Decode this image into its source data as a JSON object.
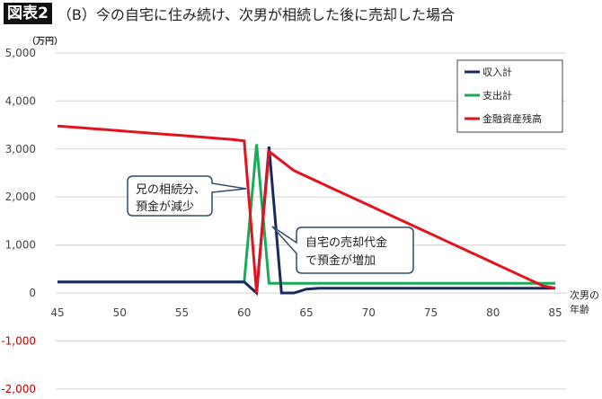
{
  "header": {
    "badge": "図表2",
    "title": "（B）今の自宅に住み続け、次男が相続した後に売却した場合"
  },
  "axis": {
    "unit": "（万円）",
    "xlabel_line1": "次男の",
    "xlabel_line2": "年齢",
    "y_ticks": [
      "5,000",
      "4,000",
      "3,000",
      "2,000",
      "1,000",
      "0",
      "-1,000",
      "-2,000"
    ],
    "x_ticks": [
      "45",
      "50",
      "55",
      "60",
      "65",
      "70",
      "75",
      "80",
      "85"
    ]
  },
  "legend": {
    "items": [
      {
        "label": "収入計",
        "color": "#1a2a5e"
      },
      {
        "label": "支出計",
        "color": "#1aab5a"
      },
      {
        "label": "金融資産残高",
        "color": "#e0141e"
      }
    ]
  },
  "callouts": {
    "left_line1": "兄の相続分、",
    "left_line2": "預金が減少",
    "right_line1": "自宅の売却代金",
    "right_line2": "で預金が増加"
  },
  "chart_data": {
    "type": "line",
    "title": "（B）今の自宅に住み続け、次男が相続した後に売却した場合",
    "xlabel": "次男の年齢",
    "ylabel": "万円",
    "ylim": [
      -2000,
      5000
    ],
    "xlim": [
      45,
      85
    ],
    "grid": true,
    "legend_position": "top-right",
    "x": [
      45,
      46,
      47,
      48,
      49,
      50,
      51,
      52,
      53,
      54,
      55,
      56,
      57,
      58,
      59,
      60,
      61,
      62,
      63,
      64,
      65,
      66,
      67,
      68,
      69,
      70,
      71,
      72,
      73,
      74,
      75,
      76,
      77,
      78,
      79,
      80,
      81,
      82,
      83,
      84,
      85
    ],
    "series": [
      {
        "name": "収入計",
        "color": "#1a2a5e",
        "values": [
          230,
          230,
          230,
          230,
          230,
          230,
          230,
          230,
          230,
          230,
          230,
          230,
          230,
          230,
          230,
          230,
          0,
          3050,
          0,
          0,
          80,
          100,
          100,
          100,
          100,
          100,
          100,
          100,
          100,
          100,
          100,
          100,
          100,
          100,
          100,
          100,
          100,
          100,
          100,
          100,
          100
        ]
      },
      {
        "name": "支出計",
        "color": "#1aab5a",
        "values": [
          230,
          230,
          230,
          230,
          230,
          230,
          230,
          230,
          230,
          230,
          230,
          230,
          230,
          230,
          230,
          230,
          3100,
          200,
          200,
          200,
          200,
          200,
          200,
          200,
          200,
          200,
          200,
          200,
          200,
          200,
          200,
          200,
          200,
          200,
          200,
          200,
          200,
          200,
          200,
          200,
          200
        ]
      },
      {
        "name": "金融資産残高",
        "color": "#e0141e",
        "values": [
          3480,
          3460,
          3440,
          3420,
          3400,
          3380,
          3360,
          3340,
          3320,
          3300,
          3280,
          3260,
          3240,
          3220,
          3200,
          3170,
          0,
          2950,
          2750,
          2550,
          2430,
          2310,
          2190,
          2070,
          1950,
          1830,
          1710,
          1590,
          1470,
          1350,
          1230,
          1110,
          990,
          870,
          750,
          630,
          510,
          390,
          270,
          150,
          100
        ]
      }
    ],
    "annotations": [
      "兄の相続分、預金が減少",
      "自宅の売却代金で預金が増加"
    ]
  }
}
